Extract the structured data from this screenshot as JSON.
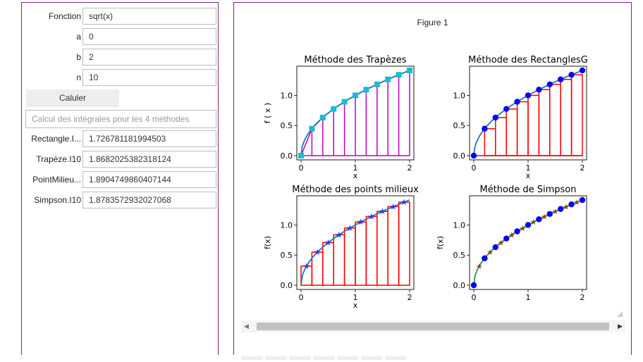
{
  "form": {
    "fields": [
      {
        "label": "Fonction",
        "value": "sqrt(x)"
      },
      {
        "label": "a",
        "value": "0"
      },
      {
        "label": "b",
        "value": "2"
      },
      {
        "label": "n",
        "value": "10"
      }
    ],
    "button_label": "Caluler",
    "placeholder": "Calcul des intégrales pour les 4 méthodes",
    "results": [
      {
        "label": "Rectangle.I...",
        "value": "1.72678118199450​3"
      },
      {
        "label": "Trapèze.I10",
        "value": "1.8682025382318124"
      },
      {
        "label": "PointMilieu...",
        "value": "1.8904749860407144"
      },
      {
        "label": "Simpson.I10",
        "value": "1.8783572932027068"
      }
    ]
  },
  "figure": {
    "title": "Figure 1",
    "subplots": [
      {
        "title": "Méthode des Trapèzes",
        "xlabel": "x",
        "ylabel": "f ( x )"
      },
      {
        "title": "Méthode des RectanglesG",
        "xlabel": "x",
        "ylabel": ""
      },
      {
        "title": "Méthode des points milieux",
        "xlabel": "x",
        "ylabel": "f(x)"
      },
      {
        "title": "Méthode de Simpson",
        "xlabel": "",
        "ylabel": "f(x)"
      }
    ],
    "xticks": [
      "0",
      "1",
      "2"
    ],
    "yticks": [
      "0.0",
      "0.5",
      "1.0"
    ]
  },
  "chart_data": [
    {
      "type": "line",
      "title": "Méthode des Trapèzes",
      "function": "sqrt(x)",
      "xlim": [
        0,
        2
      ],
      "ylim": [
        0,
        1.414
      ],
      "n": 10,
      "x": [
        0,
        0.2,
        0.4,
        0.6,
        0.8,
        1.0,
        1.2,
        1.4,
        1.6,
        1.8,
        2.0
      ],
      "y": [
        0,
        0.447,
        0.632,
        0.775,
        0.894,
        1.0,
        1.095,
        1.183,
        1.265,
        1.342,
        1.414
      ],
      "colors": {
        "curve": "#1f77b4",
        "markers": "#17becf",
        "bars": "#bf00bf"
      }
    },
    {
      "type": "line",
      "title": "Méthode des RectanglesG",
      "function": "sqrt(x)",
      "xlim": [
        0,
        2
      ],
      "ylim": [
        0,
        1.414
      ],
      "n": 10,
      "x": [
        0,
        0.2,
        0.4,
        0.6,
        0.8,
        1.0,
        1.2,
        1.4,
        1.6,
        1.8,
        2.0
      ],
      "y": [
        0,
        0.447,
        0.632,
        0.775,
        0.894,
        1.0,
        1.095,
        1.183,
        1.265,
        1.342,
        1.414
      ],
      "colors": {
        "curve": "#1f77b4",
        "markers": "#0000ff",
        "bars": "#ff0000"
      }
    },
    {
      "type": "line",
      "title": "Méthode des points milieux",
      "function": "sqrt(x)",
      "xlim": [
        0,
        2
      ],
      "ylim": [
        0,
        1.414
      ],
      "n": 10,
      "x": [
        0.1,
        0.3,
        0.5,
        0.7,
        0.9,
        1.1,
        1.3,
        1.5,
        1.7,
        1.9
      ],
      "y": [
        0.316,
        0.548,
        0.707,
        0.837,
        0.949,
        1.049,
        1.14,
        1.225,
        1.304,
        1.378
      ],
      "colors": {
        "curve": "#1f77b4",
        "markers": "#1f3fff",
        "bars": "#ff0000"
      }
    },
    {
      "type": "line",
      "title": "Méthode de Simpson",
      "function": "sqrt(x)",
      "xlim": [
        0,
        2
      ],
      "ylim": [
        0,
        1.414
      ],
      "n": 10,
      "x": [
        0,
        0.2,
        0.4,
        0.6,
        0.8,
        1.0,
        1.2,
        1.4,
        1.6,
        1.8,
        2.0
      ],
      "y": [
        0,
        0.447,
        0.632,
        0.775,
        0.894,
        1.0,
        1.095,
        1.183,
        1.265,
        1.342,
        1.414
      ],
      "midpoints_x": [
        0.1,
        0.3,
        0.5,
        0.7,
        0.9,
        1.1,
        1.3,
        1.5,
        1.7,
        1.9
      ],
      "midpoints_y": [
        0.316,
        0.548,
        0.707,
        0.837,
        0.949,
        1.049,
        1.14,
        1.225,
        1.304,
        1.378
      ],
      "colors": {
        "curve": "#1f77b4",
        "markers": "#0000ff",
        "midpoints": "#8b4513",
        "parabola": "#2ca02c"
      }
    }
  ]
}
